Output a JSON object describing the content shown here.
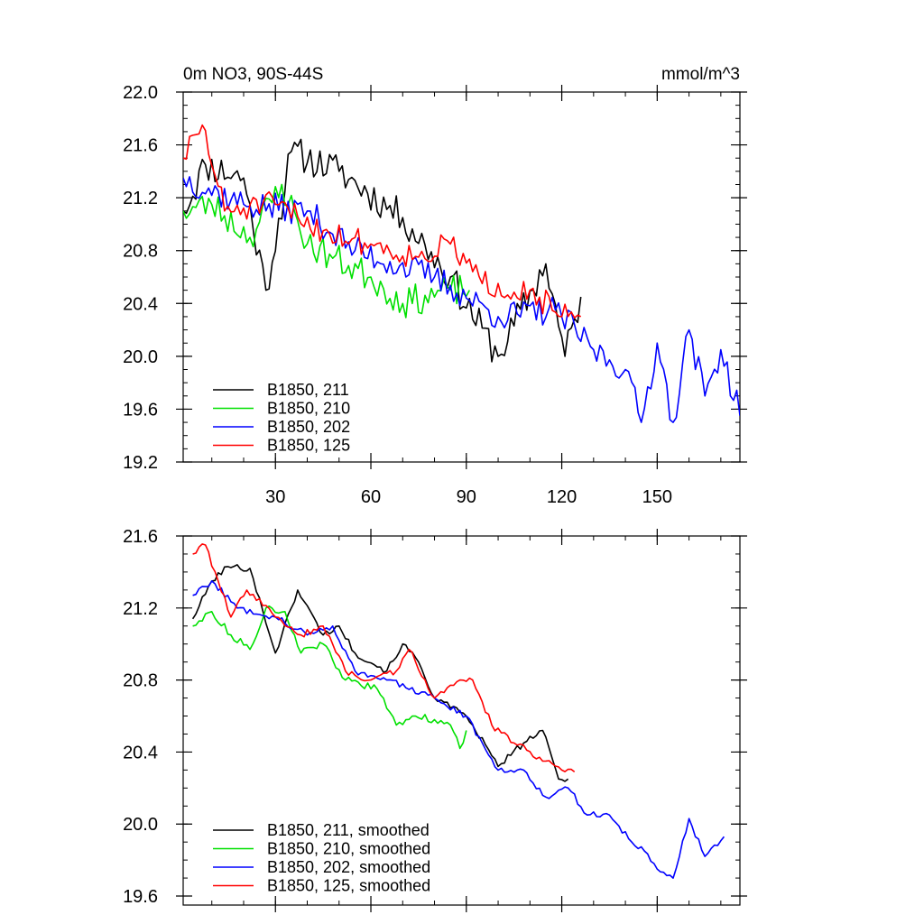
{
  "chart_data": [
    {
      "type": "line",
      "title": "0m NO3, 90S-44S",
      "units": "mmol/m^3",
      "xlim": [
        1,
        176
      ],
      "ylim": [
        19.2,
        22.0
      ],
      "yticks": [
        "22.0",
        "21.6",
        "21.2",
        "20.8",
        "20.4",
        "20.0",
        "19.6",
        "19.2"
      ],
      "yticks_values": [
        22.0,
        21.6,
        21.2,
        20.8,
        20.4,
        20.0,
        19.6,
        19.2
      ],
      "xticks": [
        "30",
        "60",
        "90",
        "120",
        "150"
      ],
      "xticks_values": [
        30,
        60,
        90,
        120,
        150
      ],
      "legend_position": "bottom-left",
      "series": [
        {
          "name": "B1850, 211",
          "color": "#000000",
          "seed": 11,
          "x_end": 126,
          "start": 21.1,
          "end": 20.35,
          "noise": 0.13,
          "anchors": [
            [
              1,
              21.1
            ],
            [
              8,
              21.45
            ],
            [
              20,
              21.35
            ],
            [
              27,
              20.5
            ],
            [
              35,
              21.55
            ],
            [
              50,
              21.4
            ],
            [
              70,
              21.05
            ],
            [
              85,
              20.6
            ],
            [
              100,
              20.0
            ],
            [
              115,
              20.7
            ],
            [
              121,
              20.0
            ],
            [
              126,
              20.45
            ]
          ]
        },
        {
          "name": "B1850, 210",
          "color": "#00e000",
          "seed": 23,
          "x_end": 91,
          "start": 21.1,
          "end": 20.45,
          "noise": 0.12,
          "anchors": [
            [
              1,
              21.1
            ],
            [
              10,
              21.15
            ],
            [
              22,
              20.9
            ],
            [
              32,
              21.3
            ],
            [
              40,
              20.85
            ],
            [
              60,
              20.6
            ],
            [
              70,
              20.4
            ],
            [
              85,
              20.5
            ],
            [
              91,
              20.5
            ]
          ]
        },
        {
          "name": "B1850, 202",
          "color": "#0000ff",
          "seed": 37,
          "x_end": 176,
          "start": 21.35,
          "end": 19.55,
          "noise": 0.11,
          "anchors": [
            [
              1,
              21.35
            ],
            [
              20,
              21.15
            ],
            [
              40,
              21.1
            ],
            [
              55,
              20.8
            ],
            [
              80,
              20.6
            ],
            [
              100,
              20.3
            ],
            [
              118,
              20.35
            ],
            [
              130,
              20.05
            ],
            [
              140,
              19.9
            ],
            [
              145,
              19.5
            ],
            [
              150,
              20.1
            ],
            [
              155,
              19.5
            ],
            [
              160,
              20.2
            ],
            [
              165,
              19.7
            ],
            [
              170,
              20.05
            ],
            [
              176,
              19.55
            ]
          ]
        },
        {
          "name": "B1850, 125",
          "color": "#ff0000",
          "seed": 51,
          "x_end": 126,
          "start": 21.5,
          "end": 20.3,
          "noise": 0.1,
          "anchors": [
            [
              1,
              21.5
            ],
            [
              7,
              21.75
            ],
            [
              14,
              21.1
            ],
            [
              30,
              21.15
            ],
            [
              45,
              20.95
            ],
            [
              60,
              20.85
            ],
            [
              75,
              20.75
            ],
            [
              85,
              20.85
            ],
            [
              95,
              20.55
            ],
            [
              110,
              20.5
            ],
            [
              120,
              20.3
            ],
            [
              126,
              20.3
            ]
          ]
        }
      ]
    },
    {
      "type": "line",
      "title": "",
      "xlim": [
        1,
        176
      ],
      "ylim": [
        19.55,
        21.6
      ],
      "yticks": [
        "21.6",
        "21.2",
        "20.8",
        "20.4",
        "20.0",
        "19.6"
      ],
      "yticks_values": [
        21.6,
        21.2,
        20.8,
        20.4,
        20.0,
        19.6
      ],
      "xticks": [],
      "xticks_values": [
        30,
        60,
        90,
        120,
        150
      ],
      "legend_position": "bottom-left",
      "series": [
        {
          "name": "B1850, 211, smoothed",
          "color": "#000000",
          "seed": 101,
          "x_end": 122,
          "noise": 0.018,
          "anchors": [
            [
              4,
              21.14
            ],
            [
              10,
              21.35
            ],
            [
              15,
              21.43
            ],
            [
              22,
              21.42
            ],
            [
              30,
              20.95
            ],
            [
              37,
              21.3
            ],
            [
              45,
              21.05
            ],
            [
              50,
              21.1
            ],
            [
              55,
              20.95
            ],
            [
              65,
              20.85
            ],
            [
              70,
              21.0
            ],
            [
              75,
              20.9
            ],
            [
              80,
              20.7
            ],
            [
              88,
              20.62
            ],
            [
              92,
              20.55
            ],
            [
              100,
              20.32
            ],
            [
              108,
              20.45
            ],
            [
              114,
              20.52
            ],
            [
              119,
              20.25
            ],
            [
              122,
              20.25
            ]
          ]
        },
        {
          "name": "B1850, 210, smoothed",
          "color": "#00e000",
          "seed": 113,
          "x_end": 90,
          "noise": 0.02,
          "anchors": [
            [
              4,
              21.1
            ],
            [
              10,
              21.18
            ],
            [
              16,
              21.05
            ],
            [
              22,
              20.97
            ],
            [
              27,
              21.2
            ],
            [
              33,
              21.18
            ],
            [
              38,
              20.95
            ],
            [
              45,
              21.0
            ],
            [
              52,
              20.8
            ],
            [
              62,
              20.75
            ],
            [
              68,
              20.55
            ],
            [
              73,
              20.6
            ],
            [
              80,
              20.58
            ],
            [
              85,
              20.55
            ],
            [
              88,
              20.42
            ],
            [
              90,
              20.52
            ]
          ]
        },
        {
          "name": "B1850, 202, smoothed",
          "color": "#0000ff",
          "seed": 127,
          "x_end": 171,
          "noise": 0.018,
          "anchors": [
            [
              4,
              21.27
            ],
            [
              10,
              21.35
            ],
            [
              18,
              21.2
            ],
            [
              30,
              21.15
            ],
            [
              40,
              21.05
            ],
            [
              48,
              21.1
            ],
            [
              55,
              20.85
            ],
            [
              65,
              20.8
            ],
            [
              80,
              20.7
            ],
            [
              90,
              20.6
            ],
            [
              100,
              20.3
            ],
            [
              108,
              20.3
            ],
            [
              115,
              20.15
            ],
            [
              122,
              20.2
            ],
            [
              128,
              20.05
            ],
            [
              135,
              20.05
            ],
            [
              142,
              19.9
            ],
            [
              146,
              19.85
            ],
            [
              150,
              19.75
            ],
            [
              155,
              19.7
            ],
            [
              160,
              20.03
            ],
            [
              165,
              19.82
            ],
            [
              171,
              19.93
            ]
          ]
        },
        {
          "name": "B1850, 125, smoothed",
          "color": "#ff0000",
          "seed": 139,
          "x_end": 124,
          "noise": 0.018,
          "anchors": [
            [
              4,
              21.5
            ],
            [
              8,
              21.55
            ],
            [
              12,
              21.35
            ],
            [
              16,
              21.15
            ],
            [
              21,
              21.3
            ],
            [
              30,
              21.15
            ],
            [
              38,
              21.05
            ],
            [
              45,
              21.1
            ],
            [
              52,
              20.85
            ],
            [
              60,
              20.8
            ],
            [
              68,
              20.85
            ],
            [
              72,
              20.97
            ],
            [
              80,
              20.7
            ],
            [
              88,
              20.8
            ],
            [
              92,
              20.8
            ],
            [
              98,
              20.55
            ],
            [
              105,
              20.45
            ],
            [
              115,
              20.35
            ],
            [
              120,
              20.3
            ],
            [
              124,
              20.29
            ]
          ]
        }
      ]
    }
  ]
}
